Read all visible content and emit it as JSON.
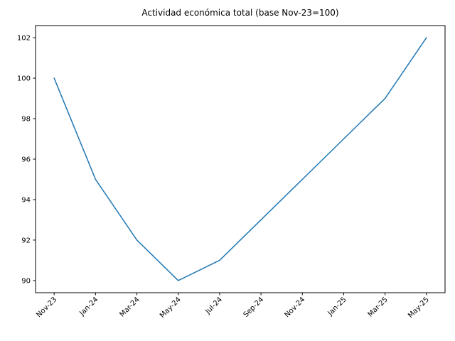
{
  "figure": {
    "background_color": "#ffffff"
  },
  "chart_data": {
    "type": "line",
    "title": "Actividad económica total (base Nov-23=100)",
    "categories": [
      "Nov-23",
      "Jan-24",
      "Mar-24",
      "May-24",
      "Jul-24",
      "Sep-24",
      "Nov-24",
      "Jan-25",
      "Mar-25",
      "May-25"
    ],
    "values": [
      100,
      95,
      92,
      90,
      91,
      93,
      95,
      97,
      99,
      102
    ],
    "xlabel": "",
    "ylabel": "",
    "yticks": [
      90,
      92,
      94,
      96,
      98,
      100,
      102
    ],
    "ylim": [
      89.4,
      102.6
    ],
    "x_tick_rotation_deg": 45,
    "grid": false,
    "legend": "none",
    "marker": "none",
    "line_color": "#1f77b4",
    "axis_color": "#000000"
  }
}
